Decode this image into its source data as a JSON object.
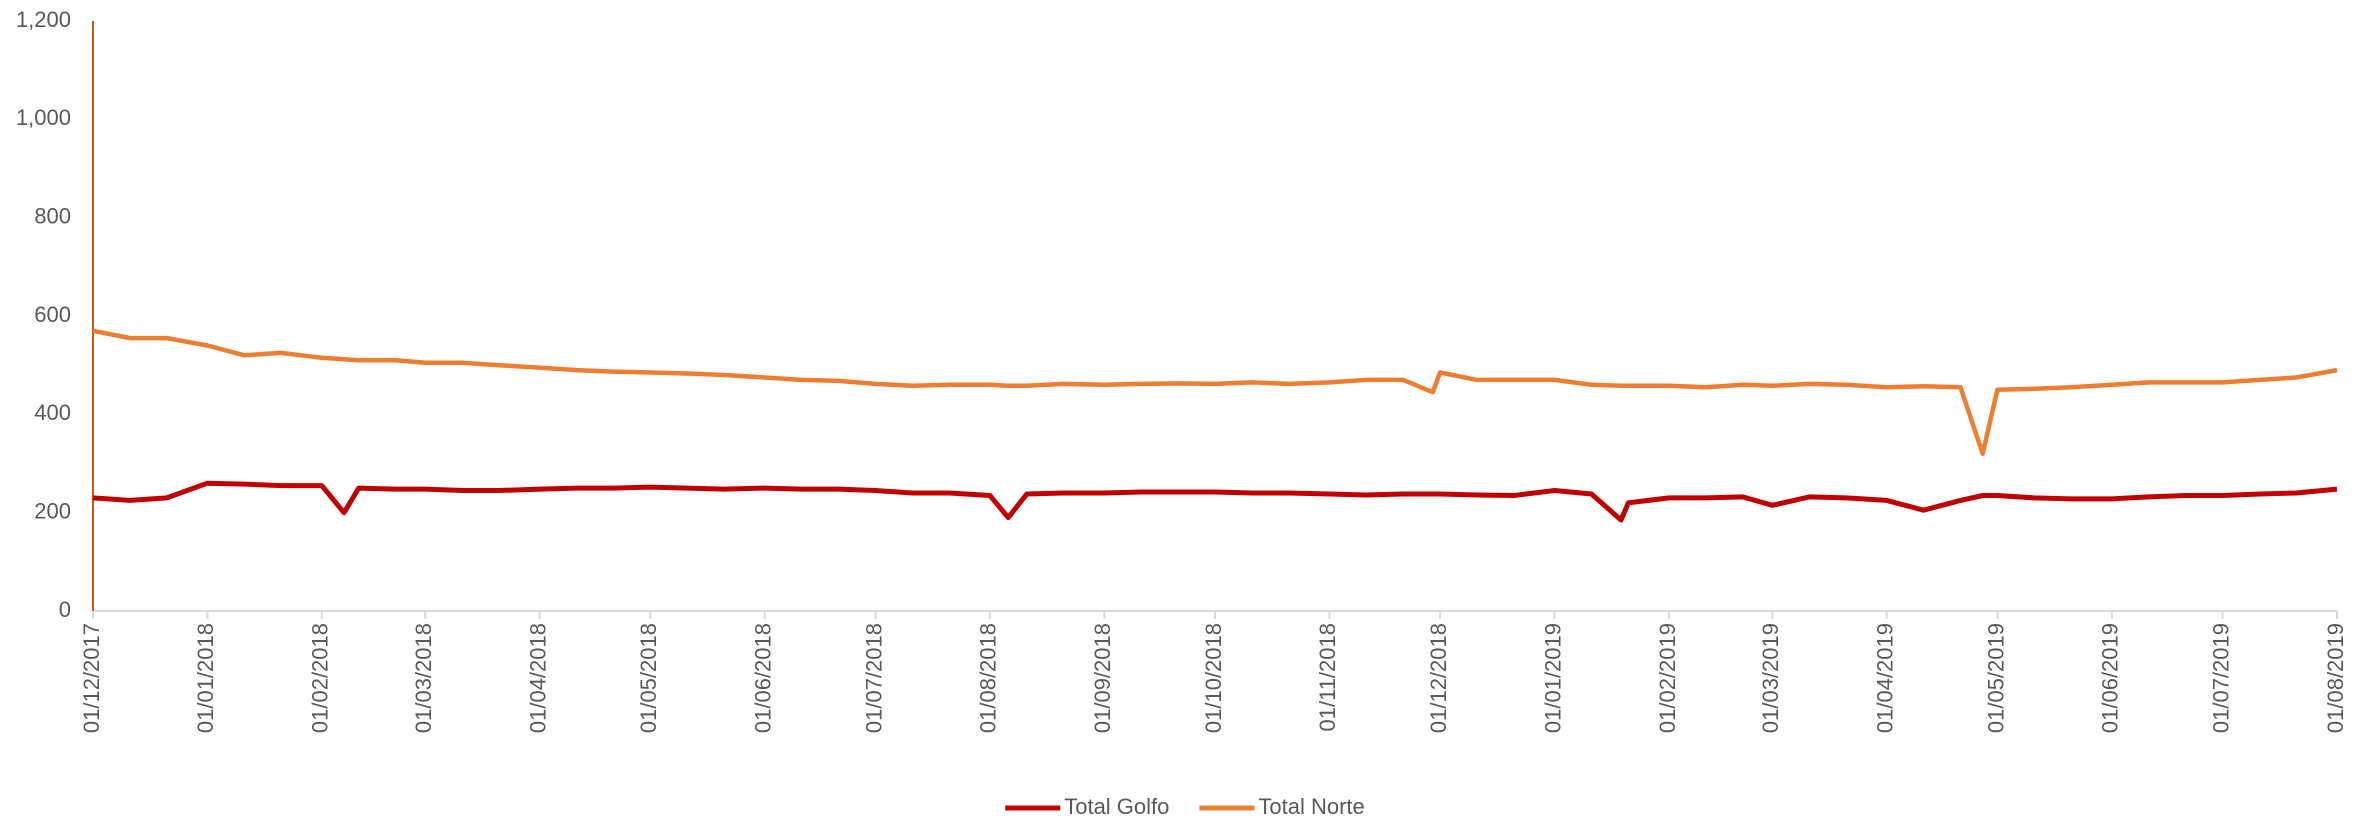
{
  "chart_data": {
    "type": "line",
    "x": [
      "2017-12-01",
      "2017-12-11",
      "2017-12-21",
      "2018-01-01",
      "2018-01-11",
      "2018-01-21",
      "2018-02-01",
      "2018-02-07",
      "2018-02-11",
      "2018-02-21",
      "2018-03-01",
      "2018-03-11",
      "2018-03-21",
      "2018-04-01",
      "2018-04-11",
      "2018-04-21",
      "2018-05-01",
      "2018-05-11",
      "2018-05-21",
      "2018-06-01",
      "2018-06-11",
      "2018-06-21",
      "2018-07-01",
      "2018-07-11",
      "2018-07-21",
      "2018-08-01",
      "2018-08-06",
      "2018-08-11",
      "2018-08-21",
      "2018-09-01",
      "2018-09-11",
      "2018-09-21",
      "2018-10-01",
      "2018-10-11",
      "2018-10-21",
      "2018-11-01",
      "2018-11-11",
      "2018-11-21",
      "2018-11-29",
      "2018-12-01",
      "2018-12-11",
      "2018-12-21",
      "2019-01-01",
      "2019-01-11",
      "2019-01-19",
      "2019-01-21",
      "2019-02-01",
      "2019-02-11",
      "2019-02-21",
      "2019-03-01",
      "2019-03-11",
      "2019-03-21",
      "2019-04-01",
      "2019-04-11",
      "2019-04-21",
      "2019-04-27",
      "2019-05-01",
      "2019-05-11",
      "2019-05-21",
      "2019-06-01",
      "2019-06-11",
      "2019-06-21",
      "2019-07-01",
      "2019-07-11",
      "2019-07-21",
      "2019-08-01"
    ],
    "series": [
      {
        "name": "Total Golfo",
        "color": "#c00000",
        "values": [
          230,
          225,
          230,
          260,
          258,
          255,
          255,
          200,
          250,
          248,
          248,
          245,
          245,
          248,
          250,
          250,
          252,
          250,
          248,
          250,
          248,
          248,
          245,
          240,
          240,
          235,
          190,
          238,
          240,
          240,
          242,
          242,
          242,
          240,
          240,
          238,
          236,
          238,
          238,
          238,
          236,
          235,
          245,
          238,
          185,
          220,
          230,
          230,
          232,
          215,
          232,
          230,
          225,
          205,
          225,
          235,
          235,
          230,
          228,
          228,
          232,
          235,
          235,
          238,
          240,
          248
        ]
      },
      {
        "name": "Total Norte",
        "color": "#ed7d31",
        "values": [
          570,
          555,
          555,
          540,
          520,
          525,
          515,
          512,
          510,
          510,
          505,
          505,
          500,
          495,
          490,
          487,
          485,
          483,
          480,
          475,
          470,
          468,
          462,
          458,
          460,
          460,
          458,
          458,
          462,
          460,
          462,
          463,
          462,
          465,
          462,
          465,
          470,
          470,
          445,
          485,
          470,
          470,
          470,
          460,
          458,
          458,
          458,
          455,
          460,
          458,
          462,
          460,
          455,
          457,
          455,
          320,
          450,
          452,
          455,
          460,
          465,
          465,
          465,
          470,
          475,
          490
        ]
      }
    ],
    "ylim": [
      0,
      1200
    ],
    "yticks": [
      0,
      200,
      400,
      600,
      800,
      {
        "value": 1000,
        "label": "1,000"
      },
      {
        "value": 1200,
        "label": "1,200"
      }
    ],
    "xlim": [
      "2017-12-01",
      "2019-08-01"
    ],
    "xticks": [
      {
        "value": "2017-12-01",
        "label": "01/12/2017"
      },
      {
        "value": "2018-01-01",
        "label": "01/01/2018"
      },
      {
        "value": "2018-02-01",
        "label": "01/02/2018"
      },
      {
        "value": "2018-03-01",
        "label": "01/03/2018"
      },
      {
        "value": "2018-04-01",
        "label": "01/04/2018"
      },
      {
        "value": "2018-05-01",
        "label": "01/05/2018"
      },
      {
        "value": "2018-06-01",
        "label": "01/06/2018"
      },
      {
        "value": "2018-07-01",
        "label": "01/07/2018"
      },
      {
        "value": "2018-08-01",
        "label": "01/08/2018"
      },
      {
        "value": "2018-09-01",
        "label": "01/09/2018"
      },
      {
        "value": "2018-10-01",
        "label": "01/10/2018"
      },
      {
        "value": "2018-11-01",
        "label": "01/11/2018"
      },
      {
        "value": "2018-12-01",
        "label": "01/12/2018"
      },
      {
        "value": "2019-01-01",
        "label": "01/01/2019"
      },
      {
        "value": "2019-02-01",
        "label": "01/02/2019"
      },
      {
        "value": "2019-03-01",
        "label": "01/03/2019"
      },
      {
        "value": "2019-04-01",
        "label": "01/04/2019"
      },
      {
        "value": "2019-05-01",
        "label": "01/05/2019"
      },
      {
        "value": "2019-06-01",
        "label": "01/06/2019"
      },
      {
        "value": "2019-07-01",
        "label": "01/07/2019"
      },
      {
        "value": "2019-08-01",
        "label": "01/08/2019"
      }
    ],
    "legend": "bottom"
  }
}
